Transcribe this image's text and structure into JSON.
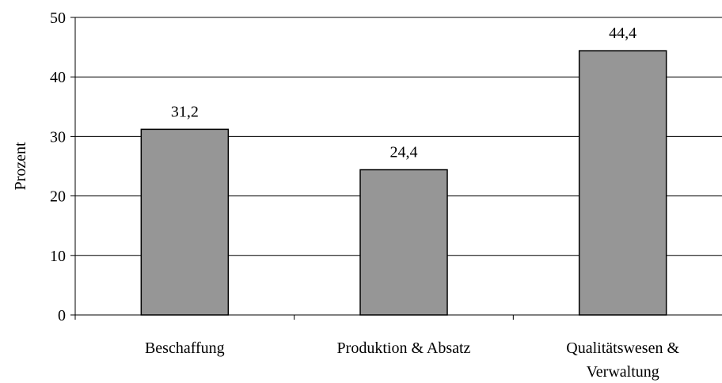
{
  "chart_data": {
    "type": "bar",
    "categories": [
      "Beschaffung",
      "Produktion & Absatz",
      "Qualitätswesen & Verwaltung"
    ],
    "category_lines": [
      [
        "Beschaffung"
      ],
      [
        "Produktion & Absatz"
      ],
      [
        "Qualitätswesen &",
        "Verwaltung"
      ]
    ],
    "values": [
      31.2,
      24.4,
      44.4
    ],
    "value_labels": [
      "31,2",
      "24,4",
      "44,4"
    ],
    "ylabel": "Prozent",
    "ylim": [
      0,
      50
    ],
    "yticks": [
      0,
      10,
      20,
      30,
      40,
      50
    ],
    "grid": true,
    "colors": {
      "bar": "#969696",
      "bar_edge": "#000000",
      "grid": "#000000"
    }
  }
}
